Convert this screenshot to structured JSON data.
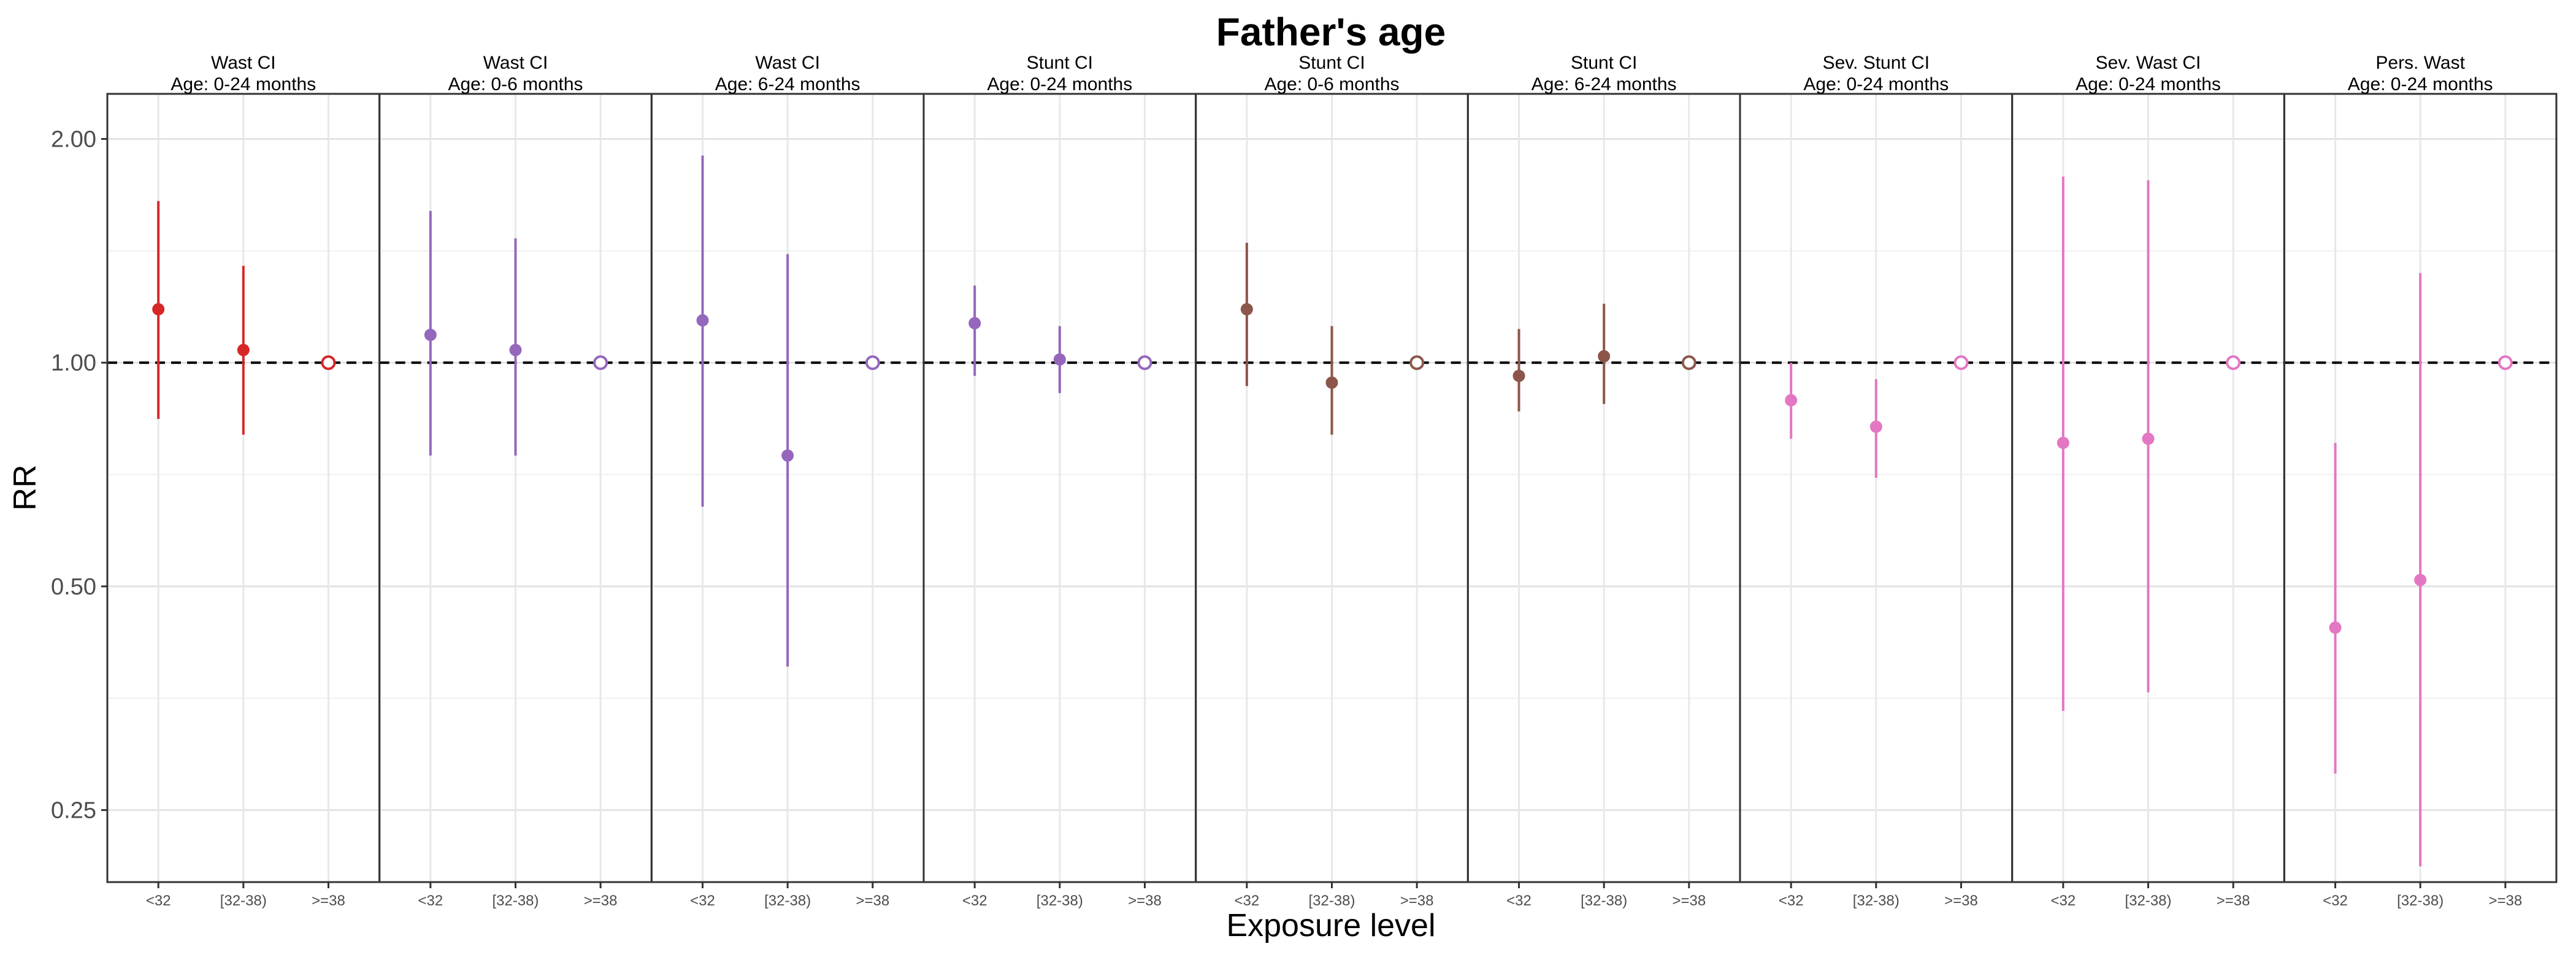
{
  "chart_data": {
    "type": "scatter",
    "title": "Father's age",
    "xlabel": "Exposure level",
    "ylabel": "RR",
    "y_scale": "log",
    "ylim": [
      0.2,
      2.3
    ],
    "yticks": [
      0.25,
      0.5,
      1.0,
      2.0
    ],
    "ytick_labels": [
      "0.25",
      "0.50",
      "1.00",
      "2.00"
    ],
    "grid": true,
    "reference_line": 1.0,
    "categories": [
      "<32",
      "[32-38)",
      ">=38"
    ],
    "panels": [
      {
        "line1": "Wast CI",
        "line2": "Age: 0-24 months",
        "color": "#d62728",
        "points": [
          {
            "rr": 1.18,
            "lo": 0.84,
            "hi": 1.65
          },
          {
            "rr": 1.04,
            "lo": 0.8,
            "hi": 1.35
          },
          {
            "rr": 1.0,
            "ref": true
          }
        ]
      },
      {
        "line1": "Wast CI",
        "line2": "Age: 0-6 months",
        "color": "#9467bd",
        "points": [
          {
            "rr": 1.09,
            "lo": 0.75,
            "hi": 1.6
          },
          {
            "rr": 1.04,
            "lo": 0.75,
            "hi": 1.47
          },
          {
            "rr": 1.0,
            "ref": true
          }
        ]
      },
      {
        "line1": "Wast CI",
        "line2": "Age: 6-24 months",
        "color": "#9467bd",
        "points": [
          {
            "rr": 1.14,
            "lo": 0.64,
            "hi": 1.9
          },
          {
            "rr": 0.75,
            "lo": 0.39,
            "hi": 1.4
          },
          {
            "rr": 1.0,
            "ref": true
          }
        ]
      },
      {
        "line1": "Stunt CI",
        "line2": "Age: 0-24 months",
        "color": "#9467bd",
        "points": [
          {
            "rr": 1.13,
            "lo": 0.96,
            "hi": 1.27
          },
          {
            "rr": 1.01,
            "lo": 0.91,
            "hi": 1.12
          },
          {
            "rr": 1.0,
            "ref": true
          }
        ]
      },
      {
        "line1": "Stunt CI",
        "line2": "Age: 0-6 months",
        "color": "#8c564b",
        "points": [
          {
            "rr": 1.18,
            "lo": 0.93,
            "hi": 1.45
          },
          {
            "rr": 0.94,
            "lo": 0.8,
            "hi": 1.12
          },
          {
            "rr": 1.0,
            "ref": true
          }
        ]
      },
      {
        "line1": "Stunt CI",
        "line2": "Age: 6-24 months",
        "color": "#8c564b",
        "points": [
          {
            "rr": 0.96,
            "lo": 0.86,
            "hi": 1.11
          },
          {
            "rr": 1.02,
            "lo": 0.88,
            "hi": 1.2
          },
          {
            "rr": 1.0,
            "ref": true
          }
        ]
      },
      {
        "line1": "Sev. Stunt CI",
        "line2": "Age: 0-24 months",
        "color": "#e377c2",
        "points": [
          {
            "rr": 0.89,
            "lo": 0.79,
            "hi": 1.0
          },
          {
            "rr": 0.82,
            "lo": 0.7,
            "hi": 0.95
          },
          {
            "rr": 1.0,
            "ref": true
          }
        ]
      },
      {
        "line1": "Sev. Wast CI",
        "line2": "Age: 0-24 months",
        "color": "#e377c2",
        "points": [
          {
            "rr": 0.78,
            "lo": 0.34,
            "hi": 1.78
          },
          {
            "rr": 0.79,
            "lo": 0.36,
            "hi": 1.76
          },
          {
            "rr": 1.0,
            "ref": true
          }
        ]
      },
      {
        "line1": "Pers. Wast",
        "line2": "Age: 0-24 months",
        "color": "#e377c2",
        "points": [
          {
            "rr": 0.44,
            "lo": 0.28,
            "hi": 0.78
          },
          {
            "rr": 0.51,
            "lo": 0.21,
            "hi": 1.32
          },
          {
            "rr": 1.0,
            "ref": true
          }
        ]
      }
    ]
  }
}
